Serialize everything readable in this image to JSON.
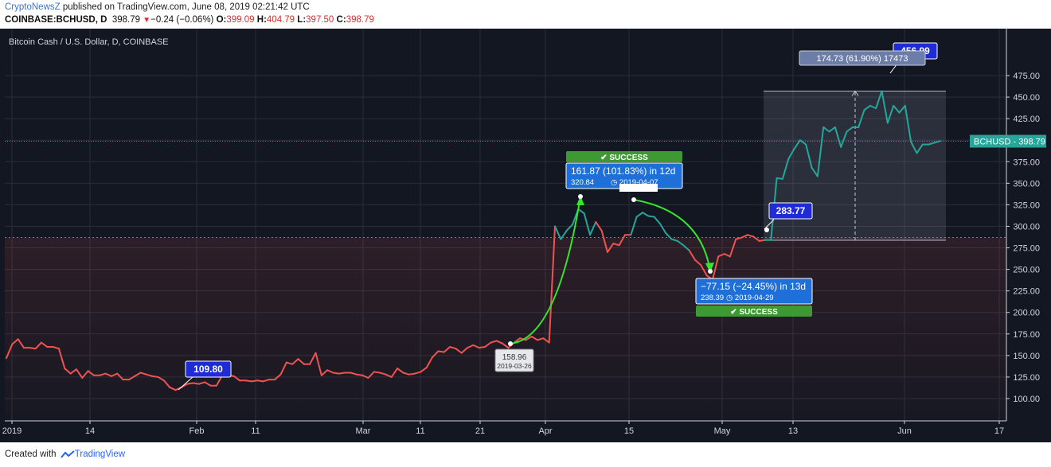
{
  "header": {
    "brand": "CryptoNewsZ",
    "published": " published on TradingView.com, June 08, 2019 02:21:42 UTC",
    "symbol": "COINBASE:BCHUSD, D",
    "last": "398.79",
    "change": "−0.24 (−0.06%)",
    "o_label": "O:",
    "o": "399.09",
    "h_label": "H:",
    "h": "404.79",
    "l_label": "L:",
    "l": "397.50",
    "c_label": "C:",
    "c": "398.79"
  },
  "footer": {
    "created": "Created with",
    "tv": "TradingView"
  },
  "colors": {
    "up": "#26a69a",
    "down": "#ef5350",
    "bg": "#131722",
    "grid": "#2a2e39",
    "label_blue": "#2196f3",
    "success": "#3d9a32"
  },
  "chart_data": {
    "type": "line",
    "title": "Bitcoin Cash / U.S. Dollar, D, COINBASE",
    "ylim": [
      80,
      490
    ],
    "yticks": [
      "100.00",
      "125.00",
      "150.00",
      "175.00",
      "200.00",
      "225.00",
      "250.00",
      "275.00",
      "300.00",
      "325.00",
      "350.00",
      "375.00",
      "400.00",
      "425.00",
      "450.00",
      "475.00"
    ],
    "xticks": [
      "2019",
      "14",
      "Feb",
      "11",
      "Mar",
      "11",
      "21",
      "Apr",
      "15",
      "May",
      "13",
      "Jun",
      "17"
    ],
    "series": [
      {
        "values": [
          147,
          163,
          169,
          159,
          159,
          158,
          165,
          160,
          160,
          158,
          135,
          129,
          134,
          124,
          132,
          127,
          127,
          129,
          126,
          129,
          122,
          122,
          126,
          130,
          128,
          126,
          125,
          121,
          113,
          110,
          113,
          117,
          118,
          117,
          119,
          115,
          115,
          127,
          127,
          126,
          121,
          121,
          120,
          121,
          120,
          122,
          122,
          128,
          142,
          140,
          146,
          140,
          140,
          153,
          127,
          133,
          130,
          129,
          130,
          130,
          128,
          127,
          124,
          131,
          130,
          128,
          125,
          135,
          130,
          128,
          129,
          131,
          136,
          148,
          155,
          154,
          160,
          158,
          153,
          159,
          162,
          159,
          160,
          165,
          167,
          164,
          159,
          165,
          170,
          168,
          172,
          168,
          170,
          165,
          300,
          285,
          295,
          302,
          320,
          315,
          290,
          305,
          295,
          270,
          280,
          278,
          290,
          290,
          311,
          316,
          312,
          311,
          303,
          292,
          285,
          283,
          278,
          272,
          261,
          255,
          243,
          238,
          265,
          268,
          265,
          285,
          287,
          290,
          288,
          283,
          284,
          284,
          356,
          355,
          378,
          390,
          400,
          395,
          368,
          358,
          415,
          410,
          415,
          392,
          410,
          415,
          415,
          435,
          440,
          437,
          457,
          420,
          440,
          432,
          440,
          398,
          385,
          395,
          395,
          397,
          399
        ]
      }
    ],
    "last_label": "BCHUSD",
    "last_value": "398.79",
    "annotations": {
      "low_tag": "109.80",
      "success_1": "SUCCESS",
      "rise_line1": "161.87 (101.83%) in 12d",
      "rise_line2": "320.84",
      "rise_date": "2019-04-07",
      "start_value": "158.96",
      "start_date": "2019-03-26",
      "fall_line1": "−77.15 (−24.45%) in 13d",
      "fall_line2": "238.39",
      "fall_date": "2019-04-29",
      "success_2": "SUCCESS",
      "tag_283": "283.77",
      "range_label": "174.73 (61.90%) 17473",
      "high_tag": "456.99"
    }
  }
}
